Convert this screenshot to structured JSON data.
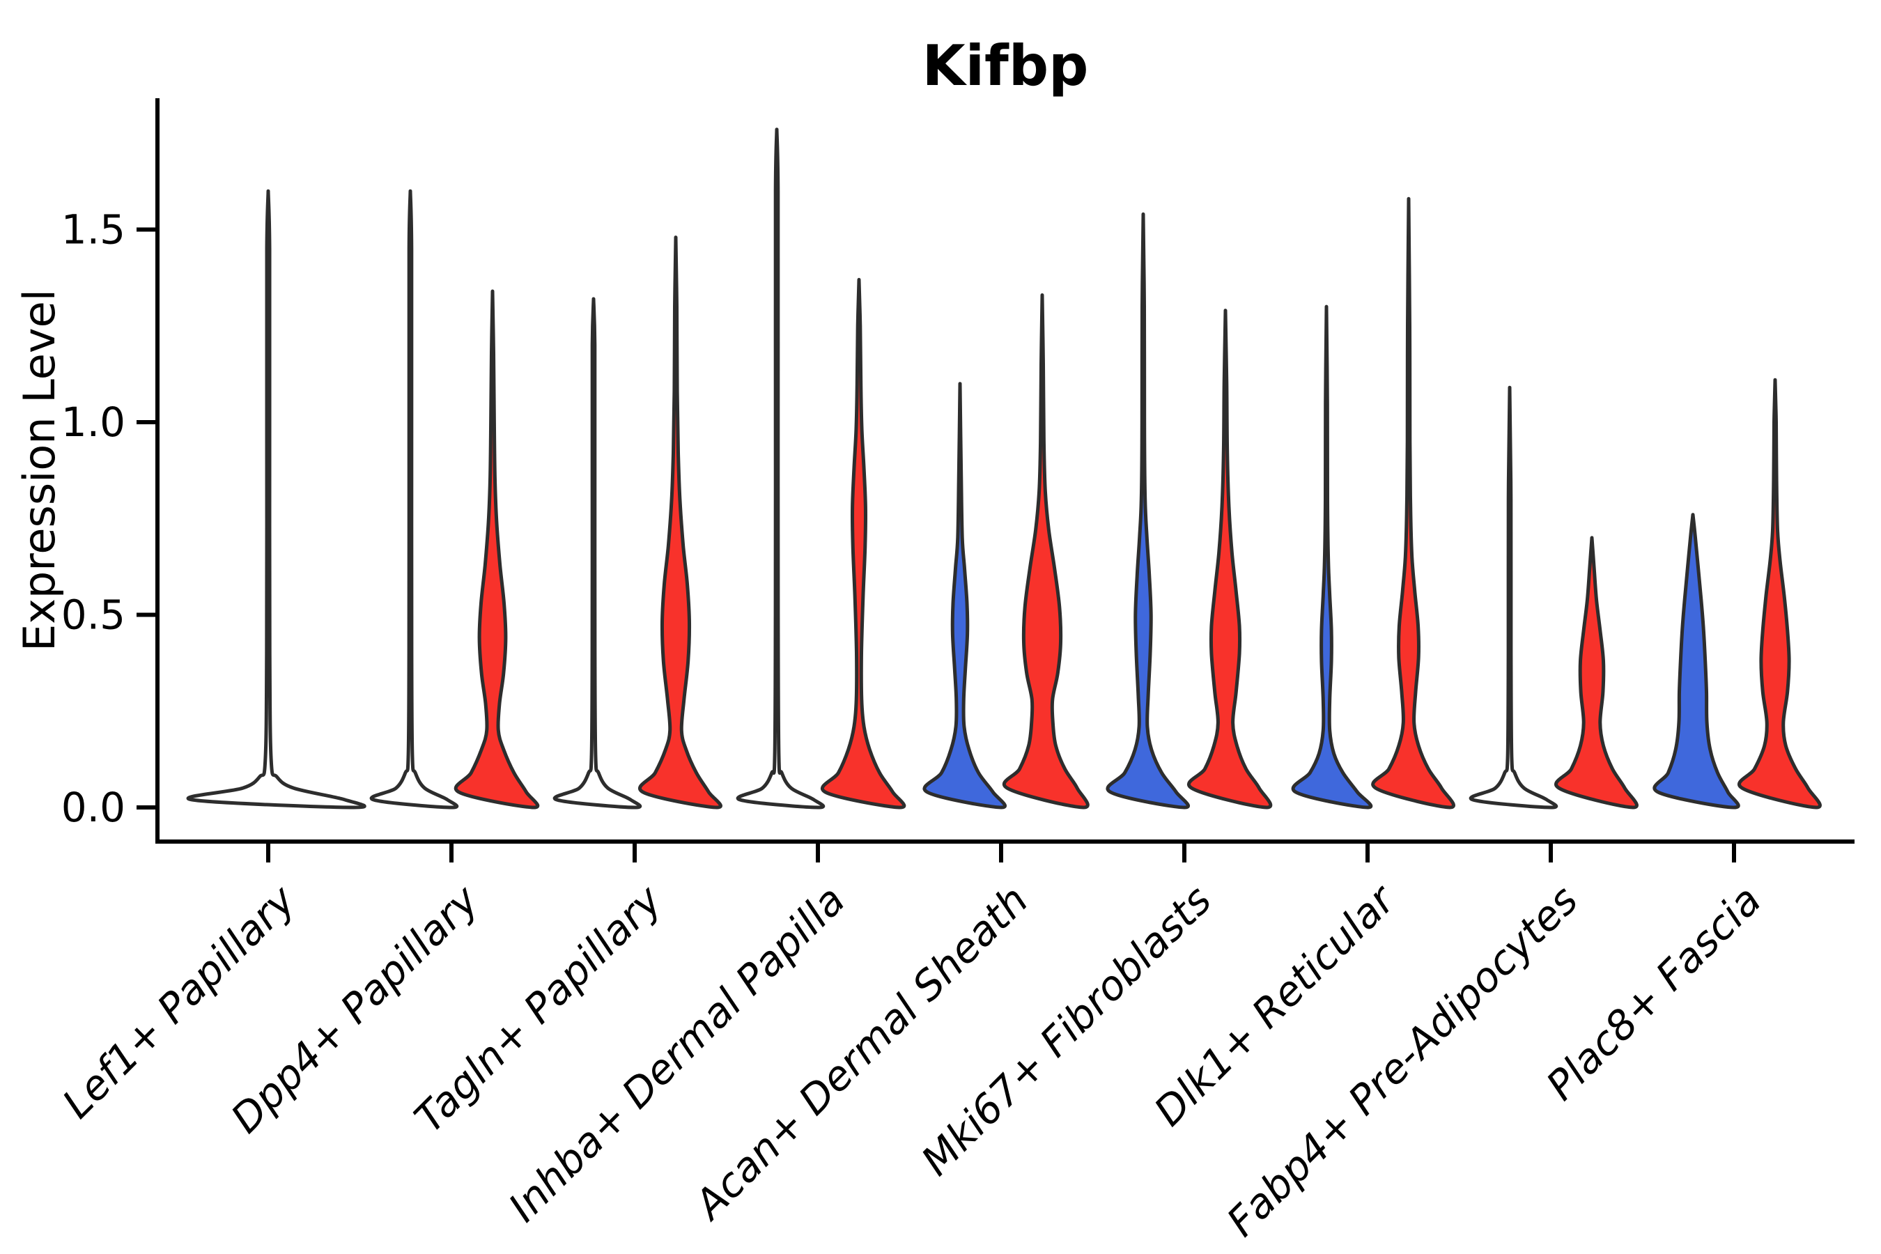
{
  "title": "Kifbp",
  "y_axis": {
    "label": "Expression Level",
    "tick_labels": [
      "0.0",
      "0.5",
      "1.0",
      "1.5"
    ],
    "tick_values": [
      0,
      0.5,
      1.0,
      1.5
    ]
  },
  "colors": {
    "red_fill": "#F8322B",
    "blue_fill": "#3F68DC",
    "violin_edge": "#2D2D2D",
    "axis": "#000000",
    "text": "#000000",
    "background": "#FFFFFF"
  },
  "chart_data": {
    "type": "violin",
    "title": "Kifbp",
    "xlabel": "",
    "ylabel": "Expression Level",
    "ylim": [
      0,
      1.85
    ],
    "yticks": [
      0,
      0.5,
      1.0,
      1.5
    ],
    "grid": "off",
    "legend": "none",
    "categories": [
      "Lef1+ Papillary",
      "Dpp4+ Papillary",
      "Tagln+ Papillary",
      "Inhba+ Dermal Papilla",
      "Acan+ Dermal Sheath",
      "Mki67+ Fibroblasts",
      "Dlk1+ Reticular",
      "Fabp4+ Pre-Adipocytes",
      "Plac8+ Fascia"
    ],
    "violins": [
      {
        "category": "Lef1+ Papillary",
        "slot": "solo",
        "color": "none",
        "max_expression": 1.6,
        "profile": [
          [
            0,
            1
          ],
          [
            0.02,
            0.9
          ],
          [
            0.05,
            0.3
          ],
          [
            0.08,
            0.1
          ],
          [
            0.12,
            0.035
          ],
          [
            0.4,
            0.018
          ],
          [
            1.0,
            0.016
          ],
          [
            1.45,
            0.016
          ],
          [
            1.6,
            0
          ]
        ]
      },
      {
        "category": "Dpp4+ Papillary",
        "slot": "left",
        "color": "none",
        "max_expression": 1.6,
        "profile": [
          [
            0,
            1
          ],
          [
            0.02,
            0.9
          ],
          [
            0.05,
            0.35
          ],
          [
            0.09,
            0.12
          ],
          [
            0.13,
            0.05
          ],
          [
            0.4,
            0.032
          ],
          [
            1.0,
            0.03
          ],
          [
            1.45,
            0.03
          ],
          [
            1.6,
            0
          ]
        ]
      },
      {
        "category": "Dpp4+ Papillary",
        "slot": "right",
        "color": "red",
        "max_expression": 1.34,
        "profile": [
          [
            0,
            1
          ],
          [
            0.04,
            0.82
          ],
          [
            0.09,
            0.52
          ],
          [
            0.15,
            0.27
          ],
          [
            0.2,
            0.14
          ],
          [
            0.27,
            0.17
          ],
          [
            0.35,
            0.27
          ],
          [
            0.44,
            0.32
          ],
          [
            0.53,
            0.28
          ],
          [
            0.63,
            0.18
          ],
          [
            0.74,
            0.1
          ],
          [
            0.85,
            0.06
          ],
          [
            1.0,
            0.04
          ],
          [
            1.18,
            0.025
          ],
          [
            1.34,
            0
          ]
        ]
      },
      {
        "category": "Tagln+ Papillary",
        "slot": "left",
        "color": "none",
        "max_expression": 1.32,
        "profile": [
          [
            0,
            1
          ],
          [
            0.02,
            0.9
          ],
          [
            0.05,
            0.35
          ],
          [
            0.09,
            0.12
          ],
          [
            0.13,
            0.05
          ],
          [
            0.4,
            0.032
          ],
          [
            0.9,
            0.03
          ],
          [
            1.2,
            0.03
          ],
          [
            1.32,
            0
          ]
        ]
      },
      {
        "category": "Tagln+ Papillary",
        "slot": "right",
        "color": "red",
        "max_expression": 1.48,
        "profile": [
          [
            0,
            1
          ],
          [
            0.04,
            0.8
          ],
          [
            0.09,
            0.5
          ],
          [
            0.15,
            0.25
          ],
          [
            0.2,
            0.14
          ],
          [
            0.28,
            0.2
          ],
          [
            0.38,
            0.3
          ],
          [
            0.48,
            0.33
          ],
          [
            0.58,
            0.28
          ],
          [
            0.68,
            0.18
          ],
          [
            0.8,
            0.1
          ],
          [
            0.92,
            0.06
          ],
          [
            1.08,
            0.035
          ],
          [
            1.3,
            0.025
          ],
          [
            1.48,
            0
          ]
        ]
      },
      {
        "category": "Inhba+ Dermal Papilla",
        "slot": "left",
        "color": "none",
        "max_expression": 1.76,
        "profile": [
          [
            0,
            1
          ],
          [
            0.02,
            0.9
          ],
          [
            0.05,
            0.35
          ],
          [
            0.09,
            0.12
          ],
          [
            0.13,
            0.05
          ],
          [
            0.5,
            0.032
          ],
          [
            1.1,
            0.03
          ],
          [
            1.6,
            0.03
          ],
          [
            1.76,
            0
          ]
        ]
      },
      {
        "category": "Inhba+ Dermal Papilla",
        "slot": "right",
        "color": "red",
        "max_expression": 1.37,
        "profile": [
          [
            0,
            1
          ],
          [
            0.04,
            0.82
          ],
          [
            0.09,
            0.5
          ],
          [
            0.15,
            0.26
          ],
          [
            0.21,
            0.12
          ],
          [
            0.28,
            0.065
          ],
          [
            0.4,
            0.06
          ],
          [
            0.55,
            0.1
          ],
          [
            0.68,
            0.15
          ],
          [
            0.78,
            0.16
          ],
          [
            0.88,
            0.12
          ],
          [
            0.98,
            0.07
          ],
          [
            1.1,
            0.045
          ],
          [
            1.25,
            0.03
          ],
          [
            1.37,
            0
          ]
        ]
      },
      {
        "category": "Acan+ Dermal Sheath",
        "slot": "left",
        "color": "blue",
        "max_expression": 1.1,
        "profile": [
          [
            0,
            1
          ],
          [
            0.04,
            0.8
          ],
          [
            0.09,
            0.45
          ],
          [
            0.15,
            0.22
          ],
          [
            0.21,
            0.1
          ],
          [
            0.28,
            0.09
          ],
          [
            0.36,
            0.13
          ],
          [
            0.45,
            0.18
          ],
          [
            0.53,
            0.17
          ],
          [
            0.62,
            0.11
          ],
          [
            0.7,
            0.055
          ],
          [
            0.85,
            0.03
          ],
          [
            1.1,
            0
          ]
        ]
      },
      {
        "category": "Acan+ Dermal Sheath",
        "slot": "right",
        "color": "red",
        "max_expression": 1.33,
        "profile": [
          [
            0,
            1
          ],
          [
            0.05,
            0.85
          ],
          [
            0.1,
            0.55
          ],
          [
            0.16,
            0.33
          ],
          [
            0.22,
            0.26
          ],
          [
            0.28,
            0.25
          ],
          [
            0.35,
            0.38
          ],
          [
            0.43,
            0.45
          ],
          [
            0.52,
            0.42
          ],
          [
            0.62,
            0.3
          ],
          [
            0.72,
            0.16
          ],
          [
            0.82,
            0.075
          ],
          [
            0.95,
            0.04
          ],
          [
            1.15,
            0.025
          ],
          [
            1.33,
            0
          ]
        ]
      },
      {
        "category": "Mki67+ Fibroblasts",
        "slot": "left",
        "color": "blue",
        "max_expression": 1.54,
        "profile": [
          [
            0,
            1
          ],
          [
            0.04,
            0.8
          ],
          [
            0.09,
            0.45
          ],
          [
            0.15,
            0.2
          ],
          [
            0.21,
            0.1
          ],
          [
            0.29,
            0.12
          ],
          [
            0.4,
            0.17
          ],
          [
            0.5,
            0.19
          ],
          [
            0.6,
            0.15
          ],
          [
            0.7,
            0.09
          ],
          [
            0.8,
            0.045
          ],
          [
            1.0,
            0.028
          ],
          [
            1.3,
            0.025
          ],
          [
            1.54,
            0
          ]
        ]
      },
      {
        "category": "Mki67+ Fibroblasts",
        "slot": "right",
        "color": "red",
        "max_expression": 1.29,
        "profile": [
          [
            0,
            1
          ],
          [
            0.05,
            0.82
          ],
          [
            0.1,
            0.5
          ],
          [
            0.16,
            0.28
          ],
          [
            0.22,
            0.18
          ],
          [
            0.3,
            0.26
          ],
          [
            0.4,
            0.34
          ],
          [
            0.47,
            0.34
          ],
          [
            0.56,
            0.26
          ],
          [
            0.66,
            0.16
          ],
          [
            0.78,
            0.085
          ],
          [
            0.92,
            0.045
          ],
          [
            1.1,
            0.03
          ],
          [
            1.29,
            0
          ]
        ]
      },
      {
        "category": "Dlk1+ Reticular",
        "slot": "left",
        "color": "blue",
        "max_expression": 1.3,
        "profile": [
          [
            0,
            1
          ],
          [
            0.04,
            0.75
          ],
          [
            0.09,
            0.4
          ],
          [
            0.14,
            0.18
          ],
          [
            0.2,
            0.08
          ],
          [
            0.28,
            0.08
          ],
          [
            0.38,
            0.12
          ],
          [
            0.46,
            0.12
          ],
          [
            0.55,
            0.08
          ],
          [
            0.64,
            0.045
          ],
          [
            0.8,
            0.025
          ],
          [
            1.05,
            0.022
          ],
          [
            1.3,
            0
          ]
        ]
      },
      {
        "category": "Dlk1+ Reticular",
        "slot": "right",
        "color": "red",
        "max_expression": 1.58,
        "profile": [
          [
            0,
            1
          ],
          [
            0.05,
            0.8
          ],
          [
            0.1,
            0.48
          ],
          [
            0.16,
            0.24
          ],
          [
            0.22,
            0.13
          ],
          [
            0.3,
            0.17
          ],
          [
            0.39,
            0.24
          ],
          [
            0.47,
            0.23
          ],
          [
            0.56,
            0.15
          ],
          [
            0.65,
            0.08
          ],
          [
            0.78,
            0.045
          ],
          [
            0.95,
            0.03
          ],
          [
            1.25,
            0.025
          ],
          [
            1.58,
            0
          ]
        ]
      },
      {
        "category": "Fabp4+ Pre-Adipocytes",
        "slot": "left",
        "color": "none",
        "max_expression": 1.09,
        "profile": [
          [
            0,
            1
          ],
          [
            0.02,
            0.9
          ],
          [
            0.05,
            0.35
          ],
          [
            0.09,
            0.12
          ],
          [
            0.13,
            0.05
          ],
          [
            0.4,
            0.032
          ],
          [
            0.8,
            0.03
          ],
          [
            1.09,
            0
          ]
        ]
      },
      {
        "category": "Fabp4+ Pre-Adipocytes",
        "slot": "right",
        "color": "red",
        "max_expression": 0.7,
        "profile": [
          [
            0,
            1
          ],
          [
            0.05,
            0.8
          ],
          [
            0.1,
            0.5
          ],
          [
            0.16,
            0.28
          ],
          [
            0.22,
            0.2
          ],
          [
            0.3,
            0.27
          ],
          [
            0.38,
            0.28
          ],
          [
            0.46,
            0.2
          ],
          [
            0.54,
            0.11
          ],
          [
            0.62,
            0.055
          ],
          [
            0.7,
            0
          ]
        ]
      },
      {
        "category": "Plac8+ Fascia",
        "slot": "left",
        "color": "blue",
        "max_expression": 0.76,
        "profile": [
          [
            0,
            1
          ],
          [
            0.04,
            0.85
          ],
          [
            0.09,
            0.6
          ],
          [
            0.15,
            0.42
          ],
          [
            0.22,
            0.34
          ],
          [
            0.3,
            0.33
          ],
          [
            0.38,
            0.3
          ],
          [
            0.46,
            0.26
          ],
          [
            0.54,
            0.2
          ],
          [
            0.62,
            0.13
          ],
          [
            0.7,
            0.06
          ],
          [
            0.76,
            0
          ]
        ]
      },
      {
        "category": "Plac8+ Fascia",
        "slot": "right",
        "color": "red",
        "max_expression": 1.11,
        "profile": [
          [
            0,
            1
          ],
          [
            0.05,
            0.8
          ],
          [
            0.1,
            0.5
          ],
          [
            0.16,
            0.26
          ],
          [
            0.22,
            0.2
          ],
          [
            0.3,
            0.3
          ],
          [
            0.38,
            0.34
          ],
          [
            0.46,
            0.3
          ],
          [
            0.55,
            0.22
          ],
          [
            0.64,
            0.12
          ],
          [
            0.72,
            0.06
          ],
          [
            0.85,
            0.035
          ],
          [
            1.0,
            0.025
          ],
          [
            1.11,
            0
          ]
        ]
      }
    ]
  }
}
